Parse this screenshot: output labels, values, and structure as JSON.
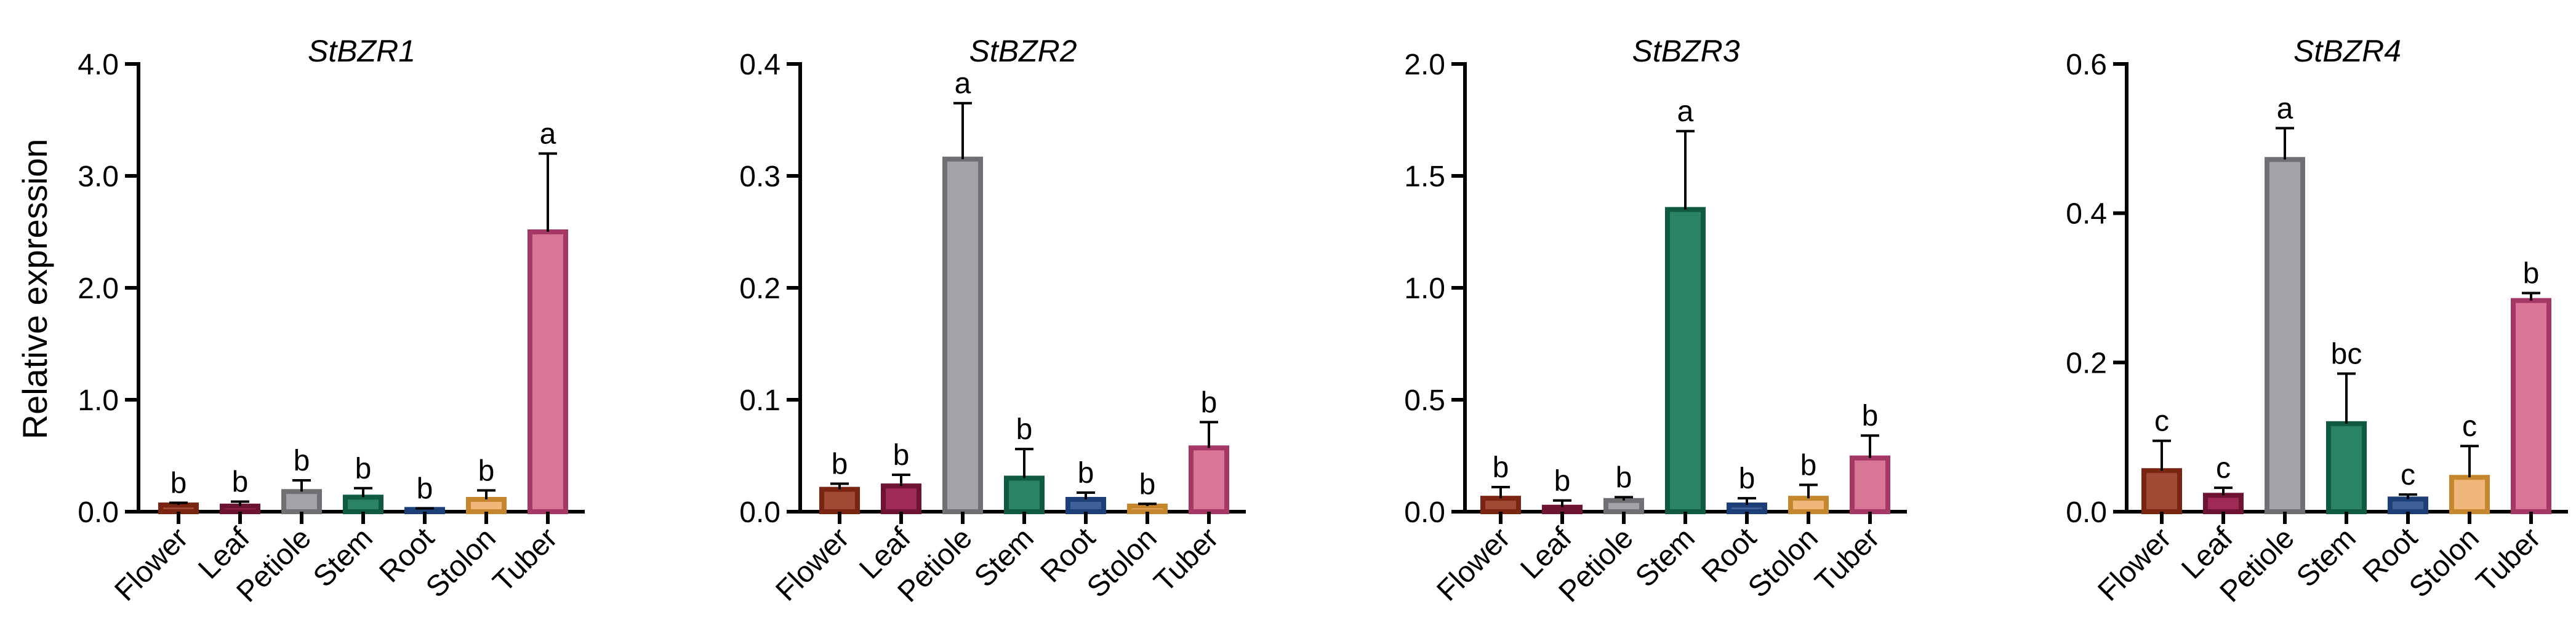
{
  "chart_data": [
    {
      "type": "bar",
      "title": "StBZR1",
      "ylabel": "Relative expression",
      "xlabel": "",
      "ylim": [
        0,
        4.0
      ],
      "yticks": [
        "0.0",
        "1.0",
        "2.0",
        "3.0",
        "4.0"
      ],
      "ytick_values": [
        0,
        1,
        2,
        3,
        4
      ],
      "categories": [
        "Flower",
        "Leaf",
        "Petiole",
        "Stem",
        "Root",
        "Stolon",
        "Tuber"
      ],
      "values": [
        0.06,
        0.05,
        0.18,
        0.13,
        0.02,
        0.11,
        2.5
      ],
      "errors": [
        0.02,
        0.04,
        0.1,
        0.08,
        0.01,
        0.08,
        0.7
      ],
      "significance": [
        "b",
        "b",
        "b",
        "b",
        "b",
        "b",
        "a"
      ]
    },
    {
      "type": "bar",
      "title": "StBZR2",
      "ylabel": "",
      "xlabel": "",
      "ylim": [
        0,
        0.4
      ],
      "yticks": [
        "0.0",
        "0.1",
        "0.2",
        "0.3",
        "0.4"
      ],
      "ytick_values": [
        0,
        0.1,
        0.2,
        0.3,
        0.4
      ],
      "categories": [
        "Flower",
        "Leaf",
        "Petiole",
        "Stem",
        "Root",
        "Stolon",
        "Tuber"
      ],
      "values": [
        0.02,
        0.023,
        0.315,
        0.03,
        0.011,
        0.005,
        0.057
      ],
      "errors": [
        0.005,
        0.01,
        0.05,
        0.026,
        0.006,
        0.002,
        0.023
      ],
      "significance": [
        "b",
        "b",
        "a",
        "b",
        "b",
        "b",
        "b"
      ]
    },
    {
      "type": "bar",
      "title": "StBZR3",
      "ylabel": "",
      "xlabel": "",
      "ylim": [
        0,
        2.0
      ],
      "yticks": [
        "0.0",
        "0.5",
        "1.0",
        "1.5",
        "2.0"
      ],
      "ytick_values": [
        0,
        0.5,
        1.0,
        1.5,
        2.0
      ],
      "categories": [
        "Flower",
        "Leaf",
        "Petiole",
        "Stem",
        "Root",
        "Stolon",
        "Tuber"
      ],
      "values": [
        0.06,
        0.02,
        0.05,
        1.35,
        0.03,
        0.06,
        0.24
      ],
      "errors": [
        0.05,
        0.03,
        0.015,
        0.35,
        0.03,
        0.06,
        0.1
      ],
      "significance": [
        "b",
        "b",
        "b",
        "a",
        "b",
        "b",
        "b"
      ]
    },
    {
      "type": "bar",
      "title": "StBZR4",
      "ylabel": "",
      "xlabel": "",
      "ylim": [
        0,
        0.6
      ],
      "yticks": [
        "0.0",
        "0.2",
        "0.4",
        "0.6"
      ],
      "ytick_values": [
        0,
        0.2,
        0.4,
        0.6
      ],
      "categories": [
        "Flower",
        "Leaf",
        "Petiole",
        "Stem",
        "Root",
        "Stolon",
        "Tuber"
      ],
      "values": [
        0.055,
        0.022,
        0.472,
        0.118,
        0.017,
        0.046,
        0.283
      ],
      "errors": [
        0.04,
        0.01,
        0.042,
        0.067,
        0.006,
        0.042,
        0.01
      ],
      "significance": [
        "c",
        "c",
        "a",
        "bc",
        "c",
        "c",
        "b"
      ]
    }
  ],
  "colors": {
    "Flower": {
      "fill": "#a14a35",
      "stroke": "#7a2511"
    },
    "Leaf": {
      "fill": "#a02a56",
      "stroke": "#6e1334"
    },
    "Petiole": {
      "fill": "#a4a4a8",
      "stroke": "#707074"
    },
    "Stem": {
      "fill": "#2a8464",
      "stroke": "#0f5a40"
    },
    "Root": {
      "fill": "#3e5f9a",
      "stroke": "#1c3f78"
    },
    "Stolon": {
      "fill": "#f0b77a",
      "stroke": "#c5862e"
    },
    "Tuber": {
      "fill": "#d97597",
      "stroke": "#a43764"
    }
  }
}
